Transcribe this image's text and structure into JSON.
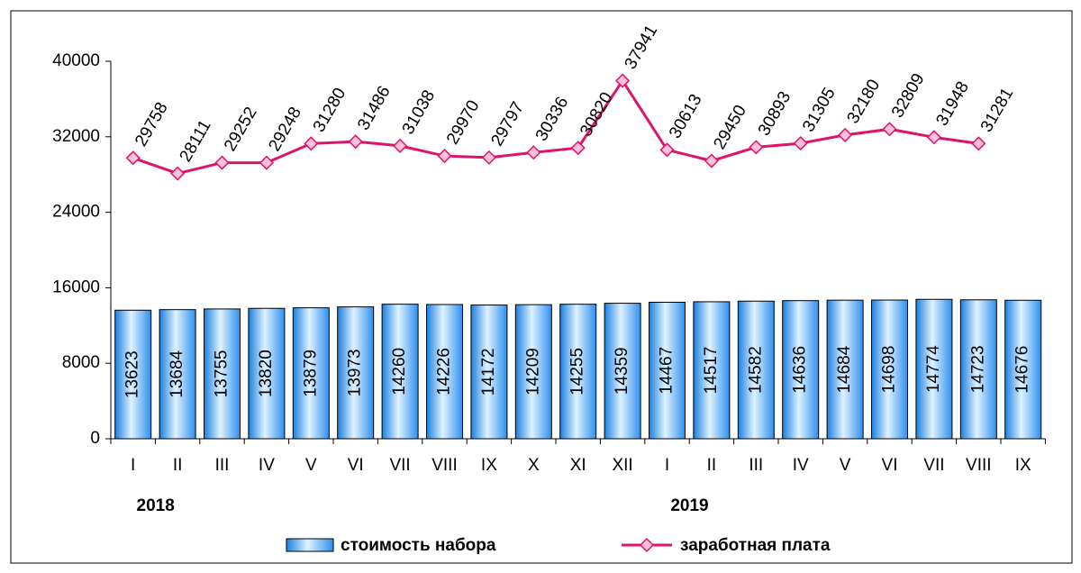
{
  "chart_data": {
    "type": "bar-line",
    "categories": [
      "I",
      "II",
      "III",
      "IV",
      "V",
      "VI",
      "VII",
      "VIII",
      "IX",
      "X",
      "XI",
      "XII",
      "I",
      "II",
      "III",
      "IV",
      "V",
      "VI",
      "VII",
      "VIII",
      "IX"
    ],
    "year_labels": [
      "2018",
      "2019"
    ],
    "series": [
      {
        "name": "стоимость набора",
        "type": "bar",
        "color": "#3399ff",
        "values": [
          13623,
          13684,
          13755,
          13820,
          13879,
          13973,
          14260,
          14226,
          14172,
          14209,
          14255,
          14359,
          14467,
          14517,
          14582,
          14636,
          14684,
          14698,
          14774,
          14723,
          14676
        ]
      },
      {
        "name": "заработная плата",
        "type": "line",
        "color": "#e0136b",
        "values": [
          29758,
          28111,
          29252,
          29248,
          31280,
          31486,
          31038,
          29970,
          29797,
          30336,
          30820,
          37941,
          30613,
          29450,
          30893,
          31305,
          32180,
          32809,
          31948,
          31281,
          null
        ]
      }
    ],
    "ylim": [
      0,
      40000
    ],
    "yticks": [
      0,
      8000,
      16000,
      24000,
      32000,
      40000
    ]
  }
}
